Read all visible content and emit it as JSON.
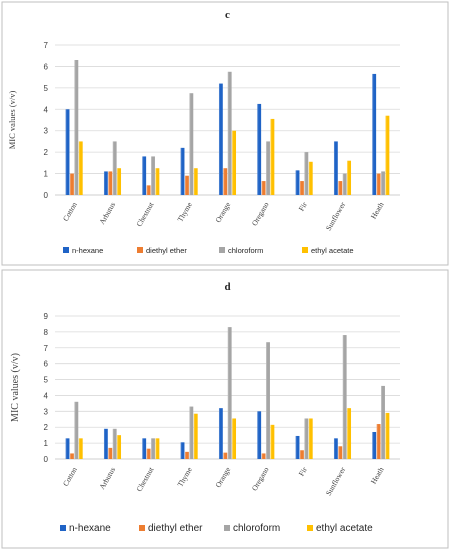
{
  "chart_data": [
    {
      "type": "bar",
      "title": "c",
      "ylabel": "MIC values (v/v)",
      "xlabel": "",
      "ylim": [
        0,
        7
      ],
      "yticks": [
        0,
        1,
        2,
        3,
        4,
        5,
        6,
        7
      ],
      "grid": true,
      "legend_position": "bottom",
      "categories": [
        "Cotton",
        "Arbutus",
        "Chestnut",
        "Thyme",
        "Orange",
        "Oregano",
        "Fir",
        "Sunflower",
        "Heath"
      ],
      "series": [
        {
          "name": "n-hexane",
          "color": "#1f63c6",
          "values": [
            4.0,
            1.1,
            1.8,
            2.2,
            5.2,
            4.25,
            1.15,
            2.5,
            5.65
          ]
        },
        {
          "name": "diethyl ether",
          "color": "#ed7d31",
          "values": [
            1.0,
            1.1,
            0.45,
            0.9,
            1.25,
            0.65,
            0.65,
            0.65,
            1.0
          ]
        },
        {
          "name": "chloroform",
          "color": "#a5a5a5",
          "values": [
            6.3,
            2.5,
            1.8,
            4.75,
            5.75,
            2.5,
            2.0,
            1.0,
            1.1
          ]
        },
        {
          "name": "ethyl acetate",
          "color": "#ffc000",
          "values": [
            2.5,
            1.25,
            1.25,
            1.25,
            3.0,
            3.55,
            1.55,
            1.6,
            3.7
          ]
        }
      ]
    },
    {
      "type": "bar",
      "title": "d",
      "ylabel": "MIC values (v/v)",
      "xlabel": "",
      "ylim": [
        0,
        9
      ],
      "yticks": [
        0,
        1,
        2,
        3,
        4,
        5,
        6,
        7,
        8,
        9
      ],
      "grid": true,
      "legend_position": "bottom",
      "categories": [
        "Cotton",
        "Arbutus",
        "Chestnut",
        "Thyme",
        "Orange",
        "Oregano",
        "Fir",
        "Sunflower",
        "Heath"
      ],
      "series": [
        {
          "name": "n-hexane",
          "color": "#1f63c6",
          "values": [
            1.3,
            1.9,
            1.3,
            1.05,
            3.2,
            3.0,
            1.45,
            1.3,
            1.7
          ]
        },
        {
          "name": "diethyl ether",
          "color": "#ed7d31",
          "values": [
            0.35,
            0.7,
            0.65,
            0.45,
            0.4,
            0.35,
            0.55,
            0.8,
            2.2
          ]
        },
        {
          "name": "chloroform",
          "color": "#a5a5a5",
          "values": [
            3.6,
            1.9,
            1.3,
            3.3,
            8.3,
            7.35,
            2.55,
            7.8,
            4.6
          ]
        },
        {
          "name": "ethyl acetate",
          "color": "#ffc000",
          "values": [
            1.3,
            1.5,
            1.3,
            2.85,
            2.55,
            2.15,
            2.55,
            3.2,
            2.9
          ]
        }
      ]
    }
  ]
}
